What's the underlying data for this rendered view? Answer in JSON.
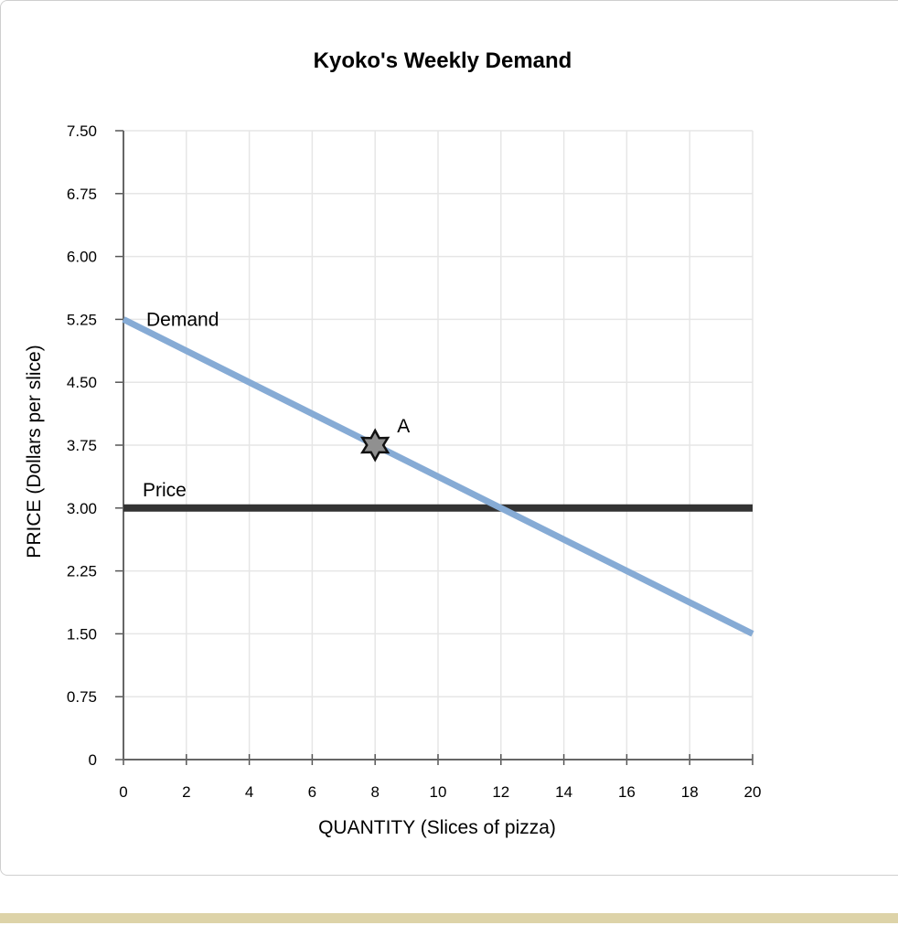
{
  "chart_data": {
    "type": "line",
    "title": "Kyoko's Weekly Demand",
    "xlabel": "QUANTITY (Slices of pizza)",
    "ylabel": "PRICE (Dollars per slice)",
    "xlim": [
      0,
      20
    ],
    "ylim": [
      0,
      7.5
    ],
    "x_ticks": [
      0,
      2,
      4,
      6,
      8,
      10,
      12,
      14,
      16,
      18,
      20
    ],
    "y_ticks": [
      "0",
      "0.75",
      "1.50",
      "2.25",
      "3.00",
      "3.75",
      "4.50",
      "5.25",
      "6.00",
      "6.75",
      "7.50"
    ],
    "grid": true,
    "series": [
      {
        "name": "Demand",
        "color": "#86abd5",
        "points": [
          [
            0,
            5.25
          ],
          [
            20,
            1.5
          ]
        ]
      },
      {
        "name": "Price",
        "color": "#333333",
        "points": [
          [
            0,
            3.0
          ],
          [
            20,
            3.0
          ]
        ]
      }
    ],
    "points": [
      {
        "label": "A",
        "x": 8,
        "y": 3.75,
        "marker": "star",
        "color": "#909090"
      }
    ]
  }
}
